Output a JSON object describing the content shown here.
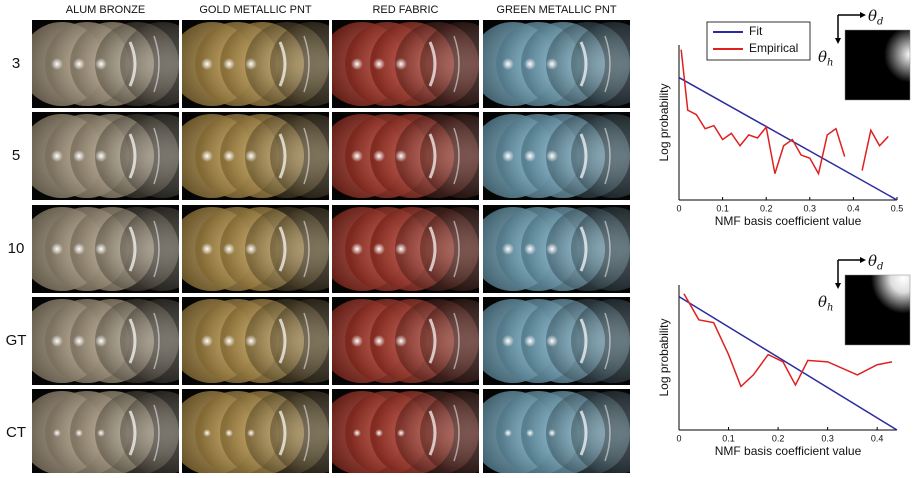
{
  "figure": {
    "columns": [
      "ALUM BRONZE",
      "GOLD METALLIC PNT",
      "RED FABRIC",
      "GREEN METALLIC PNT"
    ],
    "rows": [
      "3",
      "5",
      "10",
      "GT",
      "CT"
    ]
  },
  "chart_data": [
    {
      "type": "line",
      "xlabel": "NMF basis coefficient value",
      "ylabel": "Log probability",
      "xlim": [
        0,
        0.5
      ],
      "ylim": [
        0,
        10
      ],
      "xticks": [
        0,
        0.1,
        0.2,
        0.3,
        0.4,
        0.5
      ],
      "legend": "top-left",
      "inset_labels": [
        {
          "symbol": "θ",
          "sub": "d"
        },
        {
          "symbol": "θ",
          "sub": "h"
        }
      ],
      "series": [
        {
          "name": "Fit",
          "color": "#2b2b9e",
          "x": [
            0,
            0.5
          ],
          "values": [
            7.9,
            0
          ]
        },
        {
          "name": "Empirical",
          "color": "#e02020",
          "x": [
            0.005,
            0.02,
            0.04,
            0.06,
            0.08,
            0.1,
            0.12,
            0.14,
            0.16,
            0.18,
            0.2,
            0.22,
            0.24,
            0.26,
            0.28,
            0.3,
            0.32,
            0.34,
            0.36,
            0.38,
            0.4,
            0.42,
            0.44,
            0.46,
            0.48
          ],
          "values": [
            9.7,
            5.8,
            5.5,
            4.6,
            4.8,
            3.9,
            4.3,
            3.5,
            4.2,
            4.0,
            4.7,
            1.7,
            3.5,
            3.9,
            2.9,
            2.7,
            1.7,
            4.2,
            4.6,
            2.8,
            null,
            1.9,
            4.5,
            3.5,
            4.1
          ]
        }
      ]
    },
    {
      "type": "line",
      "xlabel": "NMF basis coefficient value",
      "ylabel": "Log probability",
      "xlim": [
        0,
        0.44
      ],
      "ylim": [
        0,
        10
      ],
      "xticks": [
        0,
        0.1,
        0.2,
        0.3,
        0.4
      ],
      "inset_labels": [
        {
          "symbol": "θ",
          "sub": "d"
        },
        {
          "symbol": "θ",
          "sub": "h"
        }
      ],
      "series": [
        {
          "color": "#2b2b9e",
          "x": [
            0,
            0.44
          ],
          "values": [
            9.2,
            0
          ]
        },
        {
          "color": "#e02020",
          "x": [
            0.01,
            0.04,
            0.07,
            0.1,
            0.125,
            0.15,
            0.18,
            0.21,
            0.235,
            0.26,
            0.3,
            0.36,
            0.4,
            0.43
          ],
          "values": [
            9.4,
            7.6,
            7.4,
            5.2,
            3.0,
            3.8,
            5.2,
            4.7,
            3.1,
            4.8,
            4.7,
            3.8,
            4.5,
            4.7
          ]
        }
      ]
    }
  ]
}
